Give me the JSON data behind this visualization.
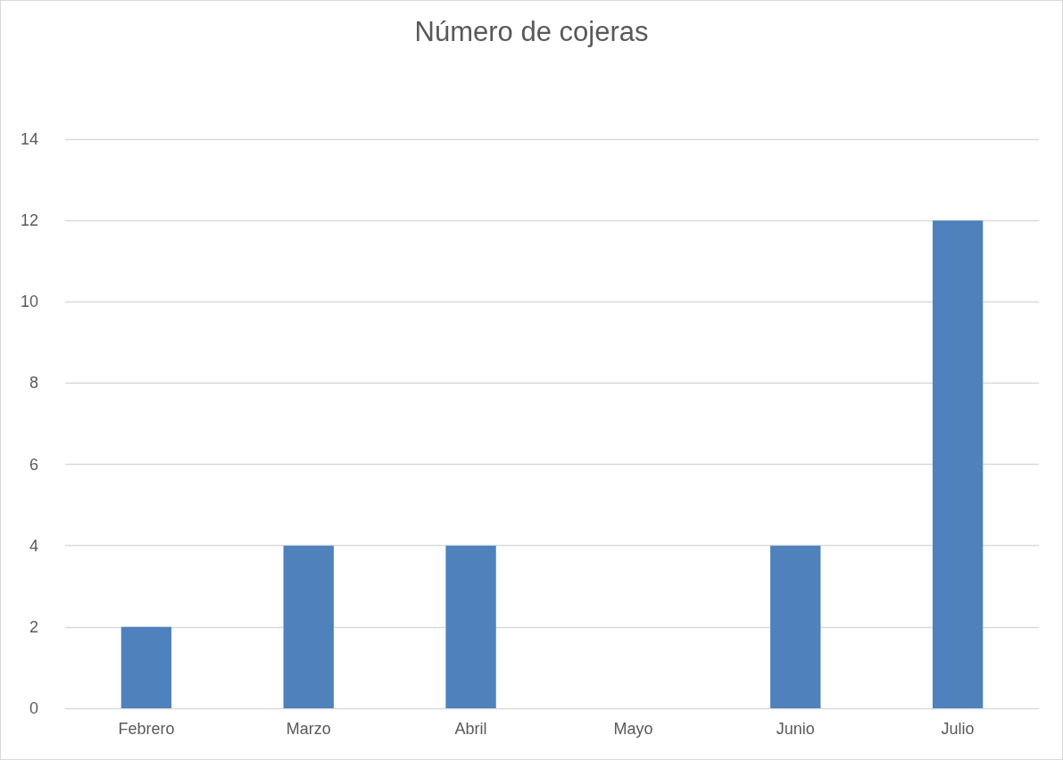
{
  "chart_data": {
    "type": "bar",
    "title": "Número de cojeras",
    "categories": [
      "Febrero",
      "Marzo",
      "Abril",
      "Mayo",
      "Junio",
      "Julio"
    ],
    "values": [
      2,
      4,
      4,
      0,
      4,
      12
    ],
    "color": "#4f81bd",
    "ylim": [
      0,
      14
    ],
    "yticks": [
      0,
      2,
      4,
      6,
      8,
      10,
      12,
      14
    ],
    "grid": "y"
  }
}
